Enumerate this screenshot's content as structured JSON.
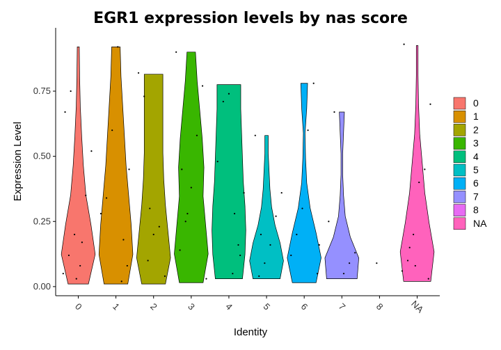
{
  "chart_data": {
    "type": "violin",
    "title": "EGR1 expression levels by nas score",
    "x_label": "Identity",
    "y_label": "Expression Level",
    "categories": [
      "0",
      "1",
      "2",
      "3",
      "4",
      "5",
      "6",
      "7",
      "8",
      "NA"
    ],
    "ylim": [
      -0.035,
      0.993
    ],
    "yticks": [
      {
        "value": 0,
        "label": "0.00"
      },
      {
        "value": 0.25,
        "label": "0.25"
      },
      {
        "value": 0.5,
        "label": "0.50"
      },
      {
        "value": 0.75,
        "label": "0.75"
      }
    ],
    "legend": "right",
    "series": [
      {
        "name": "0",
        "color": "#F8766D",
        "ylo": 0.01,
        "yhi": 0.92,
        "density": [
          0.6,
          1,
          0.75,
          0.45,
          0.3,
          0.2,
          0.12,
          0.08,
          0.06
        ],
        "points": [
          0.05,
          0.12,
          0.2,
          0.08,
          0.35,
          0.52,
          0.67,
          0.75,
          0.03,
          0.17
        ]
      },
      {
        "name": "1",
        "color": "#D89000",
        "ylo": 0.01,
        "yhi": 0.92,
        "density": [
          0.7,
          1,
          0.9,
          0.75,
          0.6,
          0.5,
          0.4,
          0.3,
          0.25
        ],
        "points": [
          0.02,
          0.08,
          0.28,
          0.34,
          0.6,
          0.92,
          0.18,
          0.45
        ]
      },
      {
        "name": "2",
        "color": "#A3A500",
        "ylo": 0.01,
        "yhi": 0.815,
        "density": [
          0.7,
          1,
          0.85,
          0.7,
          0.6,
          0.55,
          0.55,
          0.55,
          0.55
        ],
        "points": [
          0.1,
          0.2,
          0.23,
          0.04,
          0.82,
          0.73,
          0.3
        ]
      },
      {
        "name": "3",
        "color": "#39B600",
        "ylo": 0.015,
        "yhi": 0.9,
        "density": [
          0.7,
          1,
          0.85,
          0.7,
          0.75,
          0.65,
          0.5,
          0.35,
          0.25
        ],
        "points": [
          0.03,
          0.14,
          0.25,
          0.38,
          0.58,
          0.77,
          0.9,
          0.45,
          0.28
        ]
      },
      {
        "name": "4",
        "color": "#00BF7D",
        "ylo": 0.03,
        "yhi": 0.775,
        "density": [
          0.8,
          0.95,
          1,
          0.95,
          0.85,
          0.8,
          0.75,
          0.7,
          0.7
        ],
        "points": [
          0.05,
          0.16,
          0.36,
          0.48,
          0.71,
          0.74,
          0.28,
          0.12
        ]
      },
      {
        "name": "5",
        "color": "#00BFC4",
        "ylo": 0.03,
        "yhi": 0.58,
        "density": [
          0.8,
          1,
          0.8,
          0.5,
          0.3,
          0.2,
          0.15,
          0.1,
          0.1
        ],
        "points": [
          0.04,
          0.09,
          0.16,
          0.27,
          0.36,
          0.58,
          0.2
        ]
      },
      {
        "name": "6",
        "color": "#00B0F6",
        "ylo": 0.015,
        "yhi": 0.78,
        "density": [
          0.7,
          1,
          0.7,
          0.35,
          0.15,
          0.08,
          0.05,
          0.15,
          0.2
        ],
        "points": [
          0.05,
          0.12,
          0.2,
          0.3,
          0.6,
          0.78,
          0.16
        ]
      },
      {
        "name": "7",
        "color": "#9590FF",
        "ylo": 0.03,
        "yhi": 0.67,
        "density": [
          0.9,
          1,
          0.5,
          0.2,
          0.1,
          0.05,
          0.05,
          0.1,
          0.15
        ],
        "points": [
          0.05,
          0.09,
          0.13,
          0.25,
          0.67
        ]
      },
      {
        "name": "8",
        "color": "#E76BF3",
        "ylo": null,
        "yhi": null,
        "density": null,
        "points": [
          0.09
        ]
      },
      {
        "name": "NA",
        "color": "#FF62BC",
        "ylo": 0.02,
        "yhi": 0.925,
        "density": [
          0.8,
          1,
          0.7,
          0.45,
          0.3,
          0.15,
          0.08,
          0.05,
          0.05
        ],
        "points": [
          0.03,
          0.06,
          0.1,
          0.2,
          0.4,
          0.45,
          0.7,
          0.93,
          0.15,
          0.08
        ]
      }
    ]
  }
}
